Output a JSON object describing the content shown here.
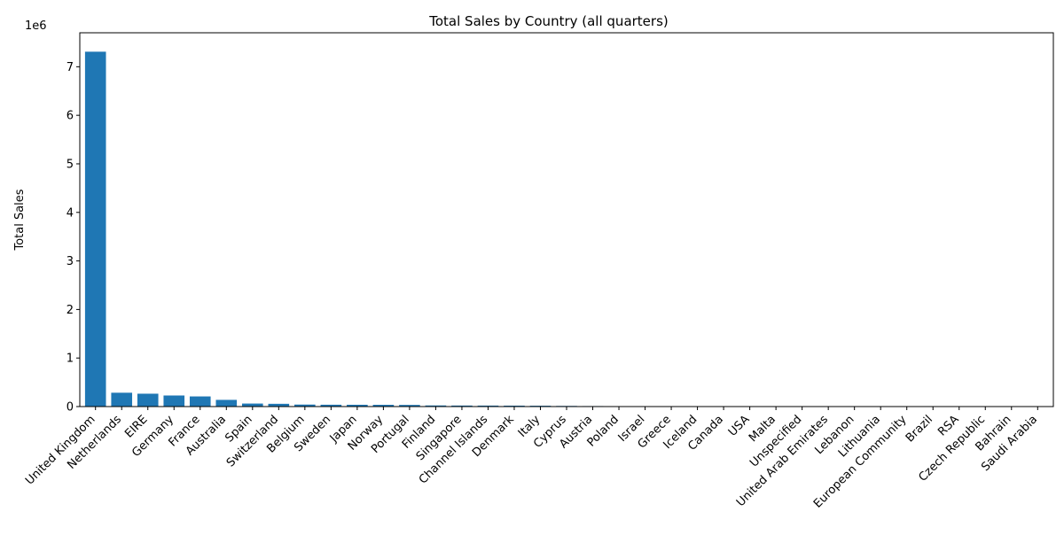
{
  "chart_data": {
    "type": "bar",
    "title": "Total Sales by Country (all quarters)",
    "xlabel": "",
    "ylabel": "Total Sales",
    "offset_label": "1e6",
    "ylim": [
      0,
      7.7
    ],
    "yticks": [
      0,
      1,
      2,
      3,
      4,
      5,
      6,
      7
    ],
    "bar_color": "#1f77b4",
    "grid": false,
    "categories": [
      "United Kingdom",
      "Netherlands",
      "EIRE",
      "Germany",
      "France",
      "Australia",
      "Spain",
      "Switzerland",
      "Belgium",
      "Sweden",
      "Japan",
      "Norway",
      "Portugal",
      "Finland",
      "Singapore",
      "Channel Islands",
      "Denmark",
      "Italy",
      "Cyprus",
      "Austria",
      "Poland",
      "Israel",
      "Greece",
      "Iceland",
      "Canada",
      "USA",
      "Malta",
      "Unspecified",
      "United Arab Emirates",
      "Lebanon",
      "Lithuania",
      "European Community",
      "Brazil",
      "RSA",
      "Czech Republic",
      "Bahrain",
      "Saudi Arabia"
    ],
    "values": [
      7.31,
      0.285,
      0.265,
      0.228,
      0.209,
      0.138,
      0.062,
      0.057,
      0.041,
      0.038,
      0.037,
      0.036,
      0.034,
      0.023,
      0.021,
      0.02,
      0.019,
      0.017,
      0.013,
      0.01,
      0.008,
      0.008,
      0.005,
      0.004,
      0.004,
      0.004,
      0.003,
      0.003,
      0.002,
      0.002,
      0.001,
      0.001,
      0.001,
      0.001,
      0.001,
      0.0005,
      0.0001
    ]
  }
}
